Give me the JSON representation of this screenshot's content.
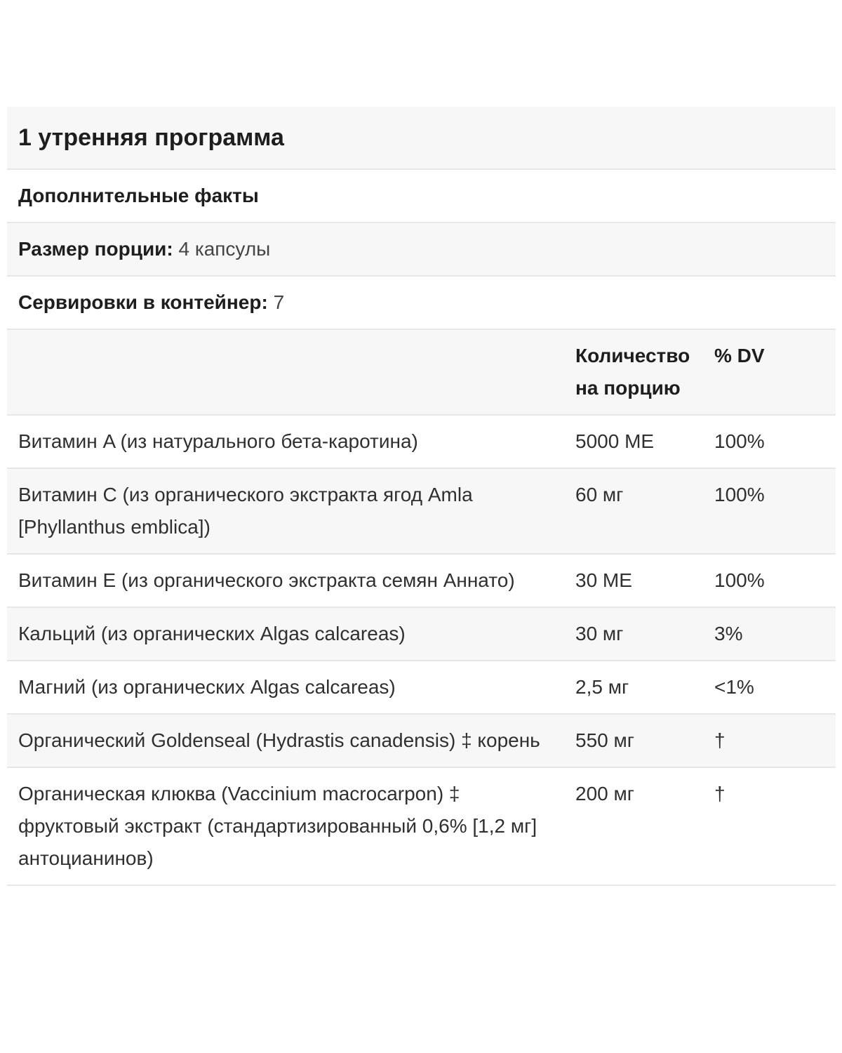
{
  "title": "1 утренняя программа",
  "facts_heading": "Дополнительные факты",
  "serving_size": {
    "label": "Размер порции:",
    "value": "4 капсулы"
  },
  "servings_per_container": {
    "label": "Сервировки в контейнер:",
    "value": "7"
  },
  "columns": {
    "amount": "Количество на порцию",
    "dv": "% DV"
  },
  "table": {
    "rows": [
      {
        "name": "Витамин A (из натурального бета-каротина)",
        "amount": "5000 ME",
        "dv": "100%"
      },
      {
        "name": "Витамин C (из органического экстракта ягод Amla [Phyllanthus emblica])",
        "amount": "60 мг",
        "dv": "100%"
      },
      {
        "name": "Витамин E (из органического экстракта семян Аннато)",
        "amount": "30 ME",
        "dv": "100%"
      },
      {
        "name": "Кальций (из органических Algas calcareas)",
        "amount": "30 мг",
        "dv": "3%"
      },
      {
        "name": "Магний (из органических Algas calcareas)",
        "amount": "2,5 мг",
        "dv": "<1%"
      },
      {
        "name": "Органический Goldenseal (Hydrastis canadensis) ‡ корень",
        "amount": "550 мг",
        "dv": "†"
      },
      {
        "name": "Органическая клюква (Vaccinium macrocarpon) ‡ фруктовый экстракт (стандартизированный 0,6% [1,2 мг] антоцианинов)",
        "amount": "200 мг",
        "dv": "†"
      }
    ]
  },
  "colors": {
    "stripe": "#f7f7f7",
    "divider": "#e7e7e7",
    "text": "#2e2e2e"
  }
}
